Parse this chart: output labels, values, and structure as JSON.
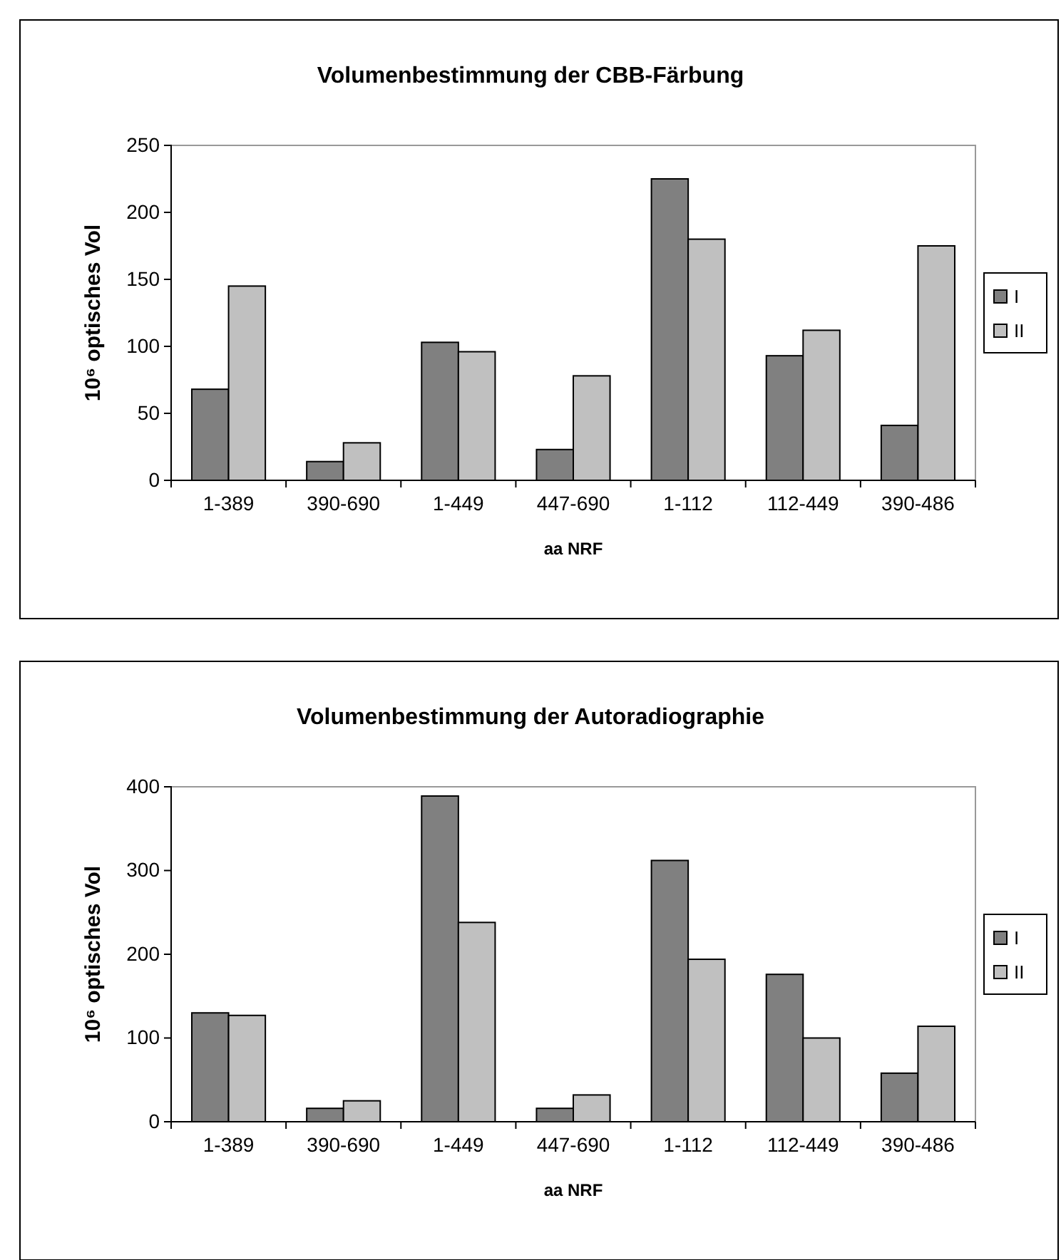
{
  "chart_data": [
    {
      "type": "bar",
      "title": "Volumenbestimmung der CBB-Färbung",
      "xlabel": "aa NRF",
      "ylabel": "10⁶ optisches Vol",
      "categories": [
        "1-389",
        "390-690",
        "1-449",
        "447-690",
        "1-112",
        "112-449",
        "390-486"
      ],
      "series": [
        {
          "name": "I",
          "color": "#808080",
          "values": [
            68,
            14,
            103,
            23,
            225,
            93,
            41
          ]
        },
        {
          "name": "II",
          "color": "#c0c0c0",
          "values": [
            145,
            28,
            96,
            78,
            180,
            112,
            175
          ]
        }
      ],
      "ylim": [
        0,
        250
      ],
      "yticks": [
        0,
        50,
        100,
        150,
        200,
        250
      ],
      "grid": false,
      "legend": "right"
    },
    {
      "type": "bar",
      "title": "Volumenbestimmung der Autoradiographie",
      "xlabel": "aa NRF",
      "ylabel": "10⁶ optisches Vol",
      "categories": [
        "1-389",
        "390-690",
        "1-449",
        "447-690",
        "1-112",
        "112-449",
        "390-486"
      ],
      "series": [
        {
          "name": "I",
          "color": "#808080",
          "values": [
            130,
            16,
            389,
            16,
            312,
            176,
            58
          ]
        },
        {
          "name": "II",
          "color": "#c0c0c0",
          "values": [
            127,
            25,
            238,
            32,
            194,
            100,
            114
          ]
        }
      ],
      "ylim": [
        0,
        400
      ],
      "yticks": [
        0,
        100,
        200,
        300,
        400
      ],
      "grid": false,
      "legend": "right"
    }
  ]
}
